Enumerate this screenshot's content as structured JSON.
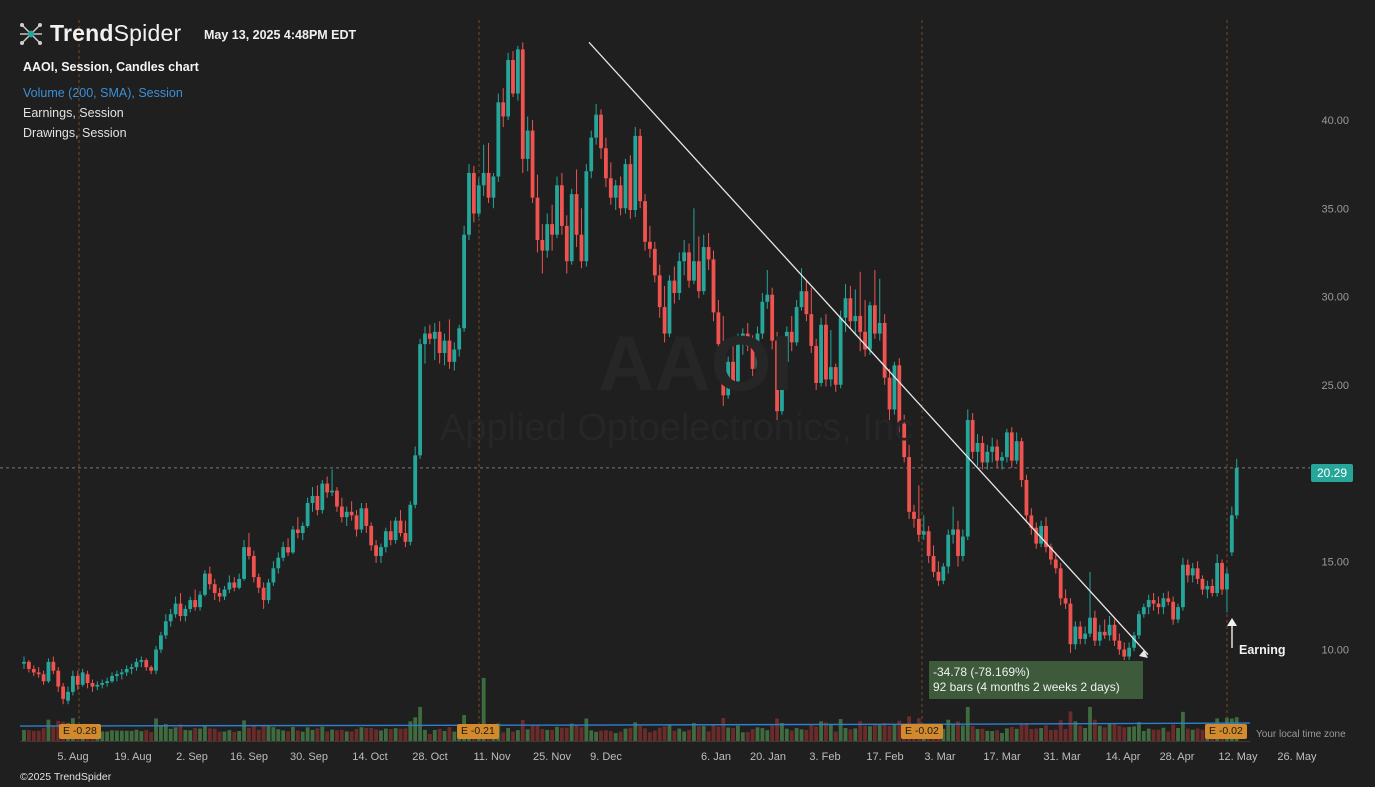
{
  "header": {
    "brand_bold": "Trend",
    "brand_light": "Spider",
    "timestamp": "May 13, 2025 4:48PM EDT"
  },
  "legend": {
    "title": "AAOI, Session, Candles chart",
    "volume": "Volume (200, SMA), Session",
    "earnings": "Earnings, Session",
    "drawings": "Drawings, Session"
  },
  "watermark": {
    "ticker": "AAOI",
    "company": "Applied Optoelectronics, Inc"
  },
  "footer": {
    "copyright": "©2025 TrendSpider",
    "timezone": "Your local time zone"
  },
  "last_price": "20.29",
  "measure": {
    "line1": "-34.78 (-78.169%)",
    "line2": "92 bars (4 months 2 weeks 2 days)"
  },
  "earning_marker": "Earning",
  "earnings_badges": [
    "E -0.28",
    "E -0.21",
    "E -0.02",
    "E -0.02"
  ],
  "colors": {
    "up": "#26a69a",
    "down": "#ef5350",
    "background": "#1f1f1f",
    "earnings": "#d28a2c",
    "volume_sma": "#2f7fd0"
  },
  "chart_data": {
    "type": "candlestick",
    "ticker": "AAOI",
    "y_ticks": [
      "10.00",
      "15.00",
      "20.00",
      "25.00",
      "30.00",
      "35.00",
      "40.00"
    ],
    "y_range": [
      8.0,
      44.5
    ],
    "x_labels": [
      "5. Aug",
      "19. Aug",
      "2. Sep",
      "16. Sep",
      "30. Sep",
      "14. Oct",
      "28. Oct",
      "11. Nov",
      "25. Nov",
      "9. Dec",
      "6. Jan",
      "20. Jan",
      "3. Feb",
      "17. Feb",
      "3. Mar",
      "17. Mar",
      "31. Mar",
      "14. Apr",
      "28. Apr",
      "12. May",
      "26. May"
    ],
    "ohlc": [
      [
        9.2,
        9.6,
        8.9,
        9.3
      ],
      [
        9.3,
        9.4,
        8.7,
        8.9
      ],
      [
        8.9,
        9.1,
        8.5,
        8.7
      ],
      [
        8.7,
        9.0,
        8.4,
        8.6
      ],
      [
        8.6,
        8.8,
        8.0,
        8.2
      ],
      [
        8.2,
        9.5,
        8.1,
        9.3
      ],
      [
        9.3,
        9.6,
        8.6,
        8.8
      ],
      [
        8.8,
        9.0,
        7.6,
        7.9
      ],
      [
        7.9,
        8.1,
        6.9,
        7.2
      ],
      [
        7.1,
        7.9,
        6.9,
        7.6
      ],
      [
        7.6,
        8.8,
        7.4,
        8.5
      ],
      [
        8.5,
        8.8,
        7.7,
        8.0
      ],
      [
        8.0,
        8.9,
        7.9,
        8.7
      ],
      [
        8.6,
        8.8,
        7.8,
        8.1
      ],
      [
        8.1,
        8.3,
        7.6,
        7.9
      ],
      [
        7.9,
        8.2,
        7.7,
        8.0
      ],
      [
        8.0,
        8.3,
        7.8,
        8.1
      ],
      [
        8.1,
        8.4,
        7.9,
        8.2
      ],
      [
        8.2,
        8.7,
        8.1,
        8.5
      ],
      [
        8.5,
        8.8,
        8.2,
        8.6
      ],
      [
        8.6,
        8.9,
        8.3,
        8.7
      ],
      [
        8.7,
        9.1,
        8.5,
        8.9
      ],
      [
        8.9,
        9.2,
        8.6,
        9.0
      ],
      [
        9.0,
        9.5,
        8.8,
        9.3
      ],
      [
        9.3,
        9.6,
        9.0,
        9.4
      ],
      [
        9.4,
        9.5,
        8.8,
        9.0
      ],
      [
        9.0,
        9.1,
        8.6,
        8.8
      ],
      [
        8.8,
        10.2,
        8.6,
        10.0
      ],
      [
        10.0,
        11.0,
        9.8,
        10.8
      ],
      [
        10.8,
        12.0,
        10.6,
        11.6
      ],
      [
        11.6,
        12.3,
        11.3,
        12.0
      ],
      [
        12.0,
        13.0,
        11.8,
        12.6
      ],
      [
        12.6,
        13.2,
        11.6,
        11.9
      ],
      [
        11.9,
        12.5,
        11.6,
        12.3
      ],
      [
        12.3,
        13.0,
        12.1,
        12.8
      ],
      [
        12.8,
        13.4,
        12.2,
        12.4
      ],
      [
        12.4,
        13.3,
        12.2,
        13.1
      ],
      [
        13.1,
        14.5,
        13.0,
        14.3
      ],
      [
        14.3,
        14.7,
        13.4,
        13.7
      ],
      [
        13.7,
        14.0,
        12.8,
        13.2
      ],
      [
        13.2,
        13.5,
        12.7,
        13.0
      ],
      [
        13.0,
        13.6,
        12.8,
        13.4
      ],
      [
        13.4,
        14.2,
        13.2,
        13.8
      ],
      [
        13.8,
        14.1,
        13.3,
        13.5
      ],
      [
        13.5,
        14.3,
        13.4,
        14.0
      ],
      [
        14.0,
        16.2,
        13.9,
        15.8
      ],
      [
        15.8,
        16.6,
        15.1,
        15.3
      ],
      [
        15.3,
        15.6,
        13.8,
        14.1
      ],
      [
        14.1,
        14.3,
        13.2,
        13.5
      ],
      [
        13.5,
        13.8,
        12.3,
        12.8
      ],
      [
        12.8,
        14.0,
        12.6,
        13.8
      ],
      [
        13.8,
        15.0,
        13.6,
        14.6
      ],
      [
        14.6,
        15.5,
        14.3,
        15.2
      ],
      [
        15.2,
        16.1,
        15.0,
        15.8
      ],
      [
        15.8,
        16.3,
        15.3,
        15.5
      ],
      [
        15.5,
        17.0,
        15.4,
        16.8
      ],
      [
        16.8,
        17.5,
        16.3,
        16.6
      ],
      [
        16.6,
        17.2,
        16.2,
        17.0
      ],
      [
        17.0,
        18.6,
        16.9,
        18.3
      ],
      [
        18.3,
        19.2,
        17.8,
        18.7
      ],
      [
        18.7,
        19.3,
        17.6,
        17.9
      ],
      [
        17.9,
        19.6,
        17.7,
        19.4
      ],
      [
        19.4,
        19.8,
        18.6,
        18.9
      ],
      [
        18.9,
        20.2,
        18.7,
        19.0
      ],
      [
        19.0,
        19.2,
        17.8,
        18.1
      ],
      [
        18.1,
        18.6,
        17.2,
        17.5
      ],
      [
        17.5,
        18.1,
        17.0,
        17.8
      ],
      [
        17.8,
        18.4,
        17.3,
        17.6
      ],
      [
        17.6,
        17.9,
        16.4,
        16.8
      ],
      [
        16.8,
        18.3,
        16.6,
        18.0
      ],
      [
        18.0,
        18.3,
        16.6,
        17.0
      ],
      [
        17.0,
        17.2,
        15.6,
        15.9
      ],
      [
        15.9,
        16.2,
        14.9,
        15.3
      ],
      [
        15.3,
        16.0,
        14.9,
        15.8
      ],
      [
        15.8,
        16.9,
        15.5,
        16.7
      ],
      [
        16.7,
        17.3,
        15.9,
        16.2
      ],
      [
        16.2,
        17.5,
        16.0,
        17.3
      ],
      [
        17.3,
        17.9,
        16.4,
        16.6
      ],
      [
        16.6,
        17.3,
        15.8,
        16.1
      ],
      [
        16.1,
        18.4,
        15.9,
        18.2
      ],
      [
        18.2,
        21.5,
        18.0,
        21.0
      ],
      [
        21.0,
        27.6,
        20.8,
        27.3
      ],
      [
        27.3,
        28.3,
        26.2,
        27.9
      ],
      [
        27.9,
        28.4,
        27.3,
        27.6
      ],
      [
        27.6,
        28.5,
        26.4,
        28.0
      ],
      [
        28.0,
        28.6,
        26.2,
        26.8
      ],
      [
        26.8,
        27.9,
        26.1,
        27.5
      ],
      [
        27.5,
        28.7,
        25.9,
        26.3
      ],
      [
        26.3,
        27.4,
        25.8,
        27.0
      ],
      [
        27.0,
        28.4,
        26.6,
        28.2
      ],
      [
        28.2,
        34.0,
        28.0,
        33.5
      ],
      [
        33.5,
        37.5,
        33.2,
        37.0
      ],
      [
        37.0,
        37.4,
        34.2,
        34.7
      ],
      [
        34.7,
        36.7,
        34.5,
        36.3
      ],
      [
        36.3,
        38.6,
        35.7,
        37.0
      ],
      [
        37.0,
        38.7,
        35.3,
        35.6
      ],
      [
        35.6,
        37.0,
        35.0,
        36.8
      ],
      [
        36.8,
        41.5,
        36.5,
        41.0
      ],
      [
        41.0,
        41.8,
        39.6,
        40.2
      ],
      [
        40.2,
        43.8,
        40.0,
        43.4
      ],
      [
        43.4,
        43.9,
        41.3,
        41.5
      ],
      [
        41.5,
        44.2,
        41.1,
        44.0
      ],
      [
        44.0,
        44.4,
        37.0,
        37.8
      ],
      [
        37.8,
        40.2,
        37.1,
        39.4
      ],
      [
        39.4,
        40.0,
        35.3,
        35.6
      ],
      [
        35.6,
        36.9,
        32.5,
        33.2
      ],
      [
        33.2,
        34.1,
        31.3,
        32.6
      ],
      [
        32.6,
        34.7,
        32.2,
        34.1
      ],
      [
        34.1,
        35.2,
        32.6,
        33.5
      ],
      [
        33.5,
        36.8,
        33.3,
        36.3
      ],
      [
        36.3,
        37.0,
        33.5,
        34.0
      ],
      [
        34.0,
        34.6,
        31.3,
        32.0
      ],
      [
        32.0,
        36.1,
        31.8,
        35.8
      ],
      [
        35.8,
        37.2,
        32.8,
        33.5
      ],
      [
        33.5,
        35.0,
        31.6,
        32.0
      ],
      [
        32.0,
        37.5,
        31.7,
        37.1
      ],
      [
        37.1,
        39.4,
        36.7,
        39.0
      ],
      [
        39.0,
        40.9,
        38.6,
        40.3
      ],
      [
        40.3,
        40.6,
        37.8,
        38.4
      ],
      [
        38.4,
        39.0,
        36.2,
        36.7
      ],
      [
        36.7,
        37.6,
        35.2,
        35.6
      ],
      [
        35.6,
        36.6,
        34.9,
        36.3
      ],
      [
        36.3,
        36.8,
        34.6,
        35.0
      ],
      [
        35.0,
        37.8,
        34.7,
        37.5
      ],
      [
        37.5,
        38.0,
        34.4,
        34.9
      ],
      [
        34.9,
        39.6,
        34.5,
        39.1
      ],
      [
        39.1,
        39.5,
        35.0,
        35.4
      ],
      [
        35.4,
        35.8,
        32.6,
        33.1
      ],
      [
        33.1,
        34.0,
        32.2,
        32.7
      ],
      [
        32.7,
        33.1,
        30.8,
        31.2
      ],
      [
        31.2,
        31.8,
        28.8,
        29.4
      ],
      [
        29.4,
        30.6,
        27.4,
        27.9
      ],
      [
        27.9,
        31.2,
        27.7,
        30.9
      ],
      [
        30.9,
        31.7,
        29.6,
        30.2
      ],
      [
        30.2,
        32.5,
        29.8,
        32.0
      ],
      [
        32.0,
        33.2,
        31.2,
        32.5
      ],
      [
        32.5,
        33.0,
        30.5,
        30.9
      ],
      [
        30.9,
        35.0,
        30.7,
        32.0
      ],
      [
        32.0,
        33.4,
        29.9,
        30.3
      ],
      [
        30.3,
        33.5,
        30.1,
        32.8
      ],
      [
        32.8,
        33.6,
        31.5,
        32.1
      ],
      [
        32.1,
        32.6,
        28.6,
        29.1
      ],
      [
        29.1,
        29.8,
        26.7,
        27.3
      ],
      [
        27.3,
        28.9,
        23.8,
        24.4
      ],
      [
        24.4,
        26.6,
        24.2,
        26.3
      ],
      [
        26.3,
        27.3,
        24.8,
        25.2
      ],
      [
        25.2,
        27.9,
        25.0,
        27.5
      ],
      [
        27.5,
        28.2,
        26.7,
        27.9
      ],
      [
        27.9,
        28.5,
        26.9,
        27.2
      ],
      [
        27.2,
        27.8,
        25.5,
        25.9
      ],
      [
        25.9,
        28.3,
        25.7,
        27.9
      ],
      [
        27.9,
        30.2,
        27.6,
        29.7
      ],
      [
        29.7,
        31.5,
        29.3,
        30.1
      ],
      [
        30.1,
        30.5,
        27.0,
        27.5
      ],
      [
        27.5,
        28.0,
        23.0,
        23.5
      ],
      [
        23.5,
        26.6,
        23.3,
        26.3
      ],
      [
        26.3,
        28.3,
        26.0,
        28.0
      ],
      [
        28.0,
        28.9,
        26.9,
        27.4
      ],
      [
        27.4,
        29.8,
        27.2,
        29.4
      ],
      [
        29.4,
        31.6,
        29.2,
        30.3
      ],
      [
        30.3,
        30.9,
        28.6,
        29.0
      ],
      [
        29.0,
        30.5,
        26.8,
        27.2
      ],
      [
        27.2,
        27.6,
        24.7,
        25.1
      ],
      [
        25.1,
        28.8,
        24.9,
        28.4
      ],
      [
        28.4,
        29.0,
        24.9,
        25.3
      ],
      [
        25.3,
        28.1,
        24.9,
        26.0
      ],
      [
        26.0,
        26.2,
        24.6,
        25.0
      ],
      [
        25.0,
        29.2,
        24.8,
        28.8
      ],
      [
        28.8,
        30.7,
        28.0,
        29.9
      ],
      [
        29.9,
        30.6,
        28.2,
        28.6
      ],
      [
        28.6,
        30.4,
        27.8,
        28.9
      ],
      [
        28.9,
        31.4,
        26.9,
        28.0
      ],
      [
        28.0,
        29.8,
        26.6,
        27.0
      ],
      [
        27.0,
        29.7,
        26.7,
        29.5
      ],
      [
        29.5,
        31.5,
        27.6,
        27.9
      ],
      [
        27.9,
        31.0,
        27.5,
        28.5
      ],
      [
        28.5,
        29.0,
        25.0,
        25.4
      ],
      [
        25.4,
        25.9,
        23.0,
        23.6
      ],
      [
        23.6,
        26.3,
        23.3,
        26.1
      ],
      [
        26.1,
        26.5,
        22.3,
        22.8
      ],
      [
        22.8,
        23.3,
        20.6,
        20.9
      ],
      [
        20.9,
        21.6,
        17.4,
        17.8
      ],
      [
        17.8,
        18.2,
        16.9,
        17.4
      ],
      [
        17.4,
        19.3,
        16.1,
        16.5
      ],
      [
        16.5,
        17.6,
        16.2,
        16.7
      ],
      [
        16.7,
        17.0,
        14.9,
        15.3
      ],
      [
        15.3,
        15.9,
        14.1,
        14.4
      ],
      [
        14.4,
        15.0,
        13.6,
        13.9
      ],
      [
        13.9,
        14.9,
        13.7,
        14.7
      ],
      [
        14.7,
        16.8,
        14.3,
        16.5
      ],
      [
        16.5,
        18.1,
        16.0,
        16.8
      ],
      [
        16.8,
        17.3,
        14.7,
        15.3
      ],
      [
        15.3,
        16.8,
        15.0,
        16.4
      ],
      [
        16.4,
        23.6,
        16.2,
        23.0
      ],
      [
        23.0,
        23.4,
        20.8,
        21.2
      ],
      [
        21.2,
        22.2,
        20.4,
        21.7
      ],
      [
        21.7,
        22.1,
        20.2,
        20.6
      ],
      [
        20.6,
        21.6,
        20.2,
        21.2
      ],
      [
        21.2,
        22.0,
        20.6,
        21.5
      ],
      [
        21.5,
        21.9,
        20.3,
        20.7
      ],
      [
        20.7,
        21.2,
        20.2,
        20.9
      ],
      [
        20.9,
        22.5,
        20.6,
        22.3
      ],
      [
        22.3,
        22.6,
        20.3,
        20.7
      ],
      [
        20.7,
        22.3,
        20.5,
        21.8
      ],
      [
        21.8,
        22.0,
        19.2,
        19.6
      ],
      [
        19.6,
        19.9,
        17.2,
        17.6
      ],
      [
        17.6,
        18.0,
        16.5,
        16.9
      ],
      [
        16.9,
        17.2,
        15.7,
        16.0
      ],
      [
        16.0,
        17.3,
        15.8,
        17.0
      ],
      [
        17.0,
        17.5,
        15.5,
        15.8
      ],
      [
        15.8,
        16.0,
        14.8,
        15.1
      ],
      [
        15.1,
        15.5,
        14.3,
        14.6
      ],
      [
        14.6,
        14.9,
        12.5,
        12.9
      ],
      [
        12.9,
        13.4,
        12.3,
        12.6
      ],
      [
        12.6,
        12.9,
        9.8,
        10.3
      ],
      [
        10.3,
        11.6,
        10.0,
        11.3
      ],
      [
        11.3,
        11.6,
        10.3,
        10.6
      ],
      [
        10.6,
        11.3,
        10.3,
        10.9
      ],
      [
        10.9,
        14.4,
        10.7,
        11.8
      ],
      [
        11.8,
        12.2,
        10.2,
        10.5
      ],
      [
        10.5,
        11.4,
        10.2,
        11.0
      ],
      [
        11.0,
        11.7,
        10.6,
        10.8
      ],
      [
        10.8,
        11.9,
        10.5,
        11.4
      ],
      [
        11.4,
        11.7,
        10.2,
        10.5
      ],
      [
        10.5,
        10.9,
        9.7,
        10.0
      ],
      [
        10.0,
        10.4,
        9.4,
        9.6
      ],
      [
        9.6,
        10.4,
        9.4,
        10.1
      ],
      [
        10.1,
        11.0,
        9.9,
        10.8
      ],
      [
        10.8,
        12.2,
        10.6,
        12.0
      ],
      [
        12.0,
        12.6,
        11.8,
        12.4
      ],
      [
        12.4,
        13.1,
        12.0,
        12.8
      ],
      [
        12.8,
        13.2,
        12.2,
        12.6
      ],
      [
        12.6,
        13.0,
        12.0,
        12.4
      ],
      [
        12.4,
        13.2,
        12.0,
        12.9
      ],
      [
        12.9,
        13.3,
        12.5,
        12.7
      ],
      [
        12.7,
        13.0,
        11.4,
        11.7
      ],
      [
        11.7,
        12.6,
        11.5,
        12.4
      ],
      [
        12.4,
        15.2,
        12.2,
        14.8
      ],
      [
        14.8,
        15.1,
        13.8,
        14.2
      ],
      [
        14.2,
        14.9,
        13.8,
        14.6
      ],
      [
        14.6,
        15.0,
        13.7,
        14.0
      ],
      [
        14.0,
        14.2,
        13.1,
        13.4
      ],
      [
        13.4,
        13.9,
        12.9,
        13.6
      ],
      [
        13.6,
        14.0,
        13.0,
        13.2
      ],
      [
        13.2,
        15.4,
        13.0,
        14.9
      ],
      [
        14.9,
        15.1,
        13.1,
        13.4
      ],
      [
        13.4,
        14.6,
        12.1,
        14.3
      ],
      [
        15.5,
        18.1,
        15.3,
        17.6
      ],
      [
        17.6,
        20.8,
        17.4,
        20.29
      ]
    ],
    "volume_sma_level": 0.42,
    "trendline": {
      "start_price": 44.4,
      "end_price": 9.6,
      "change": "-34.78 (-78.169%)",
      "bars": "92 bars (4 months 2 weeks 2 days)"
    },
    "last_price": 20.29
  }
}
